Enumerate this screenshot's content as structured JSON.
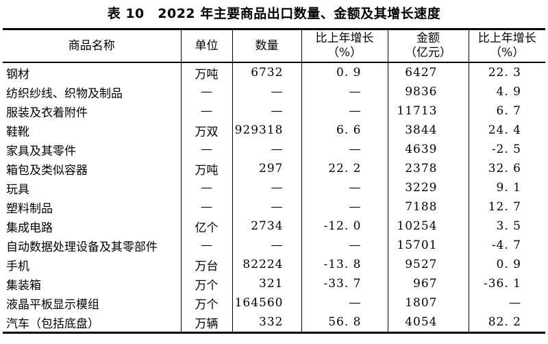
{
  "title": "表 10　2022 年主要商品出口数量、金额及其增长速度",
  "columns": [
    {
      "line1": "商品名称",
      "line2": ""
    },
    {
      "line1": "单位",
      "line2": ""
    },
    {
      "line1": "数量",
      "line2": ""
    },
    {
      "line1": "比上年增长",
      "line2": "（%）"
    },
    {
      "line1": "金额",
      "line2": "（亿元）"
    },
    {
      "line1": "比上年增长",
      "line2": "（%）"
    }
  ],
  "rows": [
    [
      "钢材",
      "万吨",
      "6732",
      "0. 9",
      "6427",
      "22. 3"
    ],
    [
      "纺织纱线、织物及制品",
      "—",
      "—",
      "—",
      "9836",
      "4. 9"
    ],
    [
      "服装及衣着附件",
      "—",
      "—",
      "—",
      "11713",
      "6. 7"
    ],
    [
      "鞋靴",
      "万双",
      "929318",
      "6. 6",
      "3844",
      "24. 4"
    ],
    [
      "家具及其零件",
      "—",
      "—",
      "—",
      "4639",
      "-2. 5"
    ],
    [
      "箱包及类似容器",
      "万吨",
      "297",
      "22. 2",
      "2378",
      "32. 6"
    ],
    [
      "玩具",
      "—",
      "—",
      "—",
      "3229",
      "9. 1"
    ],
    [
      "塑料制品",
      "—",
      "—",
      "—",
      "7188",
      "12. 7"
    ],
    [
      "集成电路",
      "亿个",
      "2734",
      "-12. 0",
      "10254",
      "3. 5"
    ],
    [
      "自动数据处理设备及其零部件",
      "—",
      "—",
      "—",
      "15701",
      "-4. 7"
    ],
    [
      "手机",
      "万台",
      "82224",
      "-13. 8",
      "9527",
      "0. 9"
    ],
    [
      "集装箱",
      "万个",
      "321",
      "-33. 7",
      "967",
      "-36. 1"
    ],
    [
      "液晶平板显示模组",
      "万个",
      "164560",
      "—",
      "1807",
      "—"
    ],
    [
      "汽车（包括底盘）",
      "万辆",
      "332",
      "56. 8",
      "4054",
      "82. 2"
    ]
  ]
}
